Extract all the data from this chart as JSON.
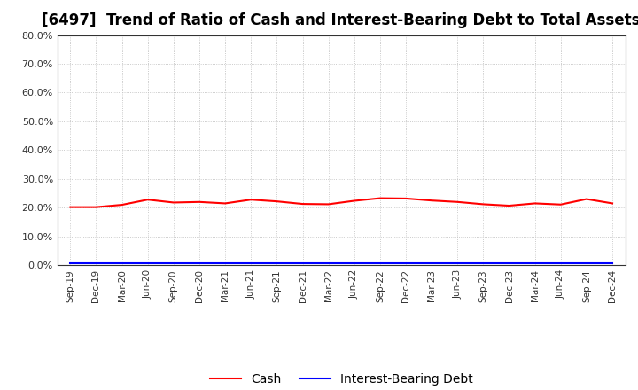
{
  "title": "[6497]  Trend of Ratio of Cash and Interest-Bearing Debt to Total Assets",
  "x_labels": [
    "Sep-19",
    "Dec-19",
    "Mar-20",
    "Jun-20",
    "Sep-20",
    "Dec-20",
    "Mar-21",
    "Jun-21",
    "Sep-21",
    "Dec-21",
    "Mar-22",
    "Jun-22",
    "Sep-22",
    "Dec-22",
    "Mar-23",
    "Jun-23",
    "Sep-23",
    "Dec-23",
    "Mar-24",
    "Jun-24",
    "Sep-24",
    "Dec-24"
  ],
  "cash": [
    0.202,
    0.202,
    0.21,
    0.228,
    0.218,
    0.22,
    0.215,
    0.228,
    0.222,
    0.213,
    0.212,
    0.224,
    0.233,
    0.232,
    0.225,
    0.22,
    0.212,
    0.207,
    0.215,
    0.211,
    0.23,
    0.215
  ],
  "debt": [
    0.008,
    0.008,
    0.008,
    0.008,
    0.008,
    0.008,
    0.008,
    0.008,
    0.008,
    0.008,
    0.008,
    0.008,
    0.008,
    0.008,
    0.008,
    0.008,
    0.008,
    0.008,
    0.008,
    0.008,
    0.008,
    0.008
  ],
  "cash_color": "#FF0000",
  "debt_color": "#0000FF",
  "ylim": [
    0.0,
    0.8
  ],
  "yticks": [
    0.0,
    0.1,
    0.2,
    0.3,
    0.4,
    0.5,
    0.6,
    0.7,
    0.8
  ],
  "background_color": "#FFFFFF",
  "grid_color": "#BBBBBB",
  "title_fontsize": 12,
  "legend_labels": [
    "Cash",
    "Interest-Bearing Debt"
  ],
  "line_width": 1.5
}
